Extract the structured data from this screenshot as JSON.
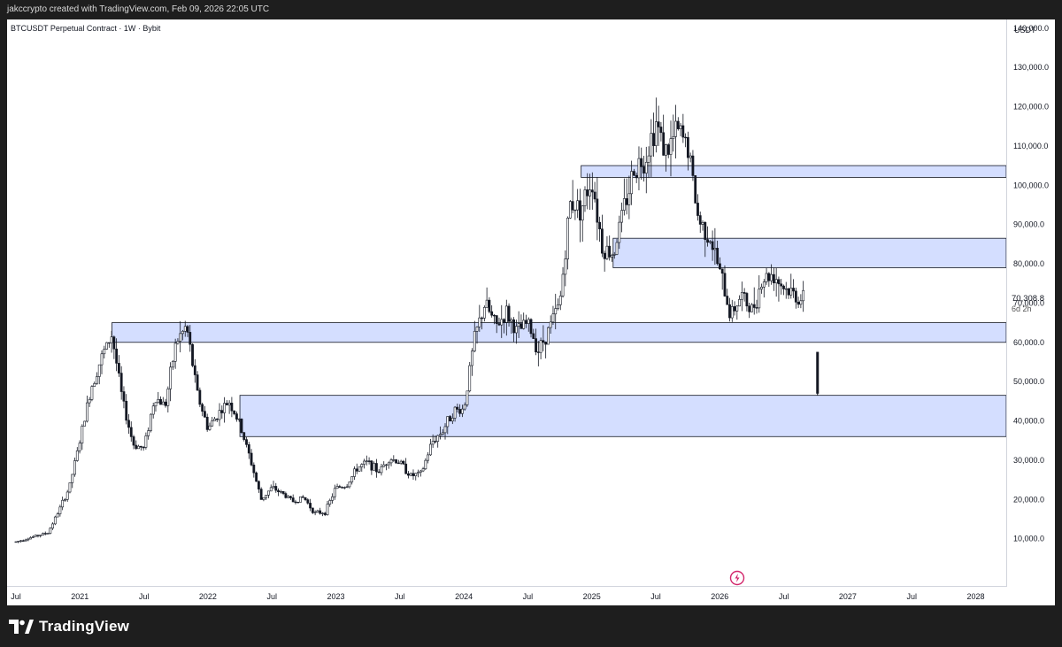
{
  "header": {
    "attribution": "jakccrypto created with TradingView.com, Feb 09, 2026 22:05 UTC"
  },
  "chart": {
    "symbol": "BTCUSDT Perpetual Contract · 1W · Bybit",
    "currency": "USDT"
  },
  "footer": {
    "logo_text": "TradingView"
  },
  "colors": {
    "zone_fill": "#d4deff",
    "zone_border": "#131722",
    "candle": "#131722",
    "grid_text": "#131722"
  },
  "chart_data": {
    "type": "candlestick",
    "title": "BTCUSDT Perpetual Contract · 1W · Bybit",
    "ylim": [
      0,
      143000
    ],
    "y_ticks": [
      10000,
      20000,
      30000,
      40000,
      50000,
      60000,
      70000,
      80000,
      90000,
      100000,
      110000,
      120000,
      130000,
      140000
    ],
    "y_tick_labels": [
      "10,000.0",
      "20,000.0",
      "30,000.0",
      "40,000.0",
      "50,000.0",
      "60,000.0",
      "70,000.0",
      "80,000.0",
      "90,000.0",
      "100,000.0",
      "110,000.0",
      "120,000.0",
      "130,000.0",
      "140,000.0"
    ],
    "x_labels": [
      "Jul",
      "2021",
      "Jul",
      "2022",
      "Jul",
      "2023",
      "Jul",
      "2024",
      "Jul",
      "2025",
      "Jul",
      "2026",
      "Jul",
      "2027",
      "Jul",
      "2028"
    ],
    "x_label_dates": [
      "2020-07",
      "2021-01",
      "2021-07",
      "2022-01",
      "2022-07",
      "2023-01",
      "2023-07",
      "2024-01",
      "2024-07",
      "2025-01",
      "2025-07",
      "2026-01",
      "2026-07",
      "2027-01",
      "2027-07",
      "2028-01"
    ],
    "x_range": [
      "2020-07",
      "2028-02"
    ],
    "last_price": {
      "label": "70,308.8",
      "value": 70308.8,
      "countdown": "6d 2h"
    },
    "zones": [
      {
        "low": 102000,
        "high": 105000,
        "start": "2024-12"
      },
      {
        "low": 79000,
        "high": 86500,
        "start": "2025-03"
      },
      {
        "low": 60000,
        "high": 65000,
        "start": "2021-04"
      },
      {
        "low": 36000,
        "high": 46500,
        "start": "2022-04"
      }
    ],
    "price_path": [
      [
        "2020-07",
        9200
      ],
      [
        "2020-09",
        10800
      ],
      [
        "2020-10",
        11500
      ],
      [
        "2020-11",
        17000
      ],
      [
        "2020-12",
        23000
      ],
      [
        "2021-01",
        35000
      ],
      [
        "2021-02",
        48000
      ],
      [
        "2021-03",
        56000
      ],
      [
        "2021-04",
        62000
      ],
      [
        "2021-05",
        45000
      ],
      [
        "2021-06",
        34000
      ],
      [
        "2021-07",
        33000
      ],
      [
        "2021-08",
        46000
      ],
      [
        "2021-09",
        44000
      ],
      [
        "2021-10",
        60000
      ],
      [
        "2021-11",
        64000
      ],
      [
        "2021-12",
        47000
      ],
      [
        "2022-01",
        38000
      ],
      [
        "2022-02",
        42000
      ],
      [
        "2022-03",
        45000
      ],
      [
        "2022-04",
        39000
      ],
      [
        "2022-05",
        30000
      ],
      [
        "2022-06",
        20000
      ],
      [
        "2022-07",
        23000
      ],
      [
        "2022-08",
        21500
      ],
      [
        "2022-09",
        19500
      ],
      [
        "2022-10",
        20500
      ],
      [
        "2022-11",
        16500
      ],
      [
        "2022-12",
        16800
      ],
      [
        "2023-01",
        23000
      ],
      [
        "2023-02",
        23500
      ],
      [
        "2023-03",
        28000
      ],
      [
        "2023-04",
        29500
      ],
      [
        "2023-05",
        27000
      ],
      [
        "2023-06",
        30500
      ],
      [
        "2023-07",
        29500
      ],
      [
        "2023-08",
        26000
      ],
      [
        "2023-09",
        26500
      ],
      [
        "2023-10",
        34500
      ],
      [
        "2023-11",
        37500
      ],
      [
        "2023-12",
        42500
      ],
      [
        "2024-01",
        43000
      ],
      [
        "2024-02",
        61000
      ],
      [
        "2024-03",
        70000
      ],
      [
        "2024-04",
        64000
      ],
      [
        "2024-05",
        67500
      ],
      [
        "2024-06",
        62500
      ],
      [
        "2024-07",
        65000
      ],
      [
        "2024-08",
        58000
      ],
      [
        "2024-09",
        63500
      ],
      [
        "2024-10",
        70000
      ],
      [
        "2024-11",
        96000
      ],
      [
        "2024-12",
        94000
      ],
      [
        "2025-01",
        102000
      ],
      [
        "2025-02",
        84000
      ],
      [
        "2025-03",
        82500
      ],
      [
        "2025-04",
        94000
      ],
      [
        "2025-05",
        104500
      ],
      [
        "2025-06",
        107000
      ],
      [
        "2025-07",
        116000
      ],
      [
        "2025-08",
        108000
      ],
      [
        "2025-09",
        114000
      ],
      [
        "2025-10",
        110000
      ],
      [
        "2025-11",
        91000
      ],
      [
        "2025-12",
        87500
      ],
      [
        "2026-01",
        78000
      ],
      [
        "2026-02",
        67000
      ],
      [
        "2026-03",
        72000
      ],
      [
        "2026-04",
        68000
      ],
      [
        "2026-05",
        76000
      ],
      [
        "2026-06",
        77500
      ],
      [
        "2026-07",
        74000
      ],
      [
        "2026-08",
        72000
      ],
      [
        "2026-09",
        70300
      ]
    ],
    "drop_candle": {
      "date": "2026-10",
      "open": 57500,
      "high": 57500,
      "low": 46500,
      "close": 47000
    }
  }
}
